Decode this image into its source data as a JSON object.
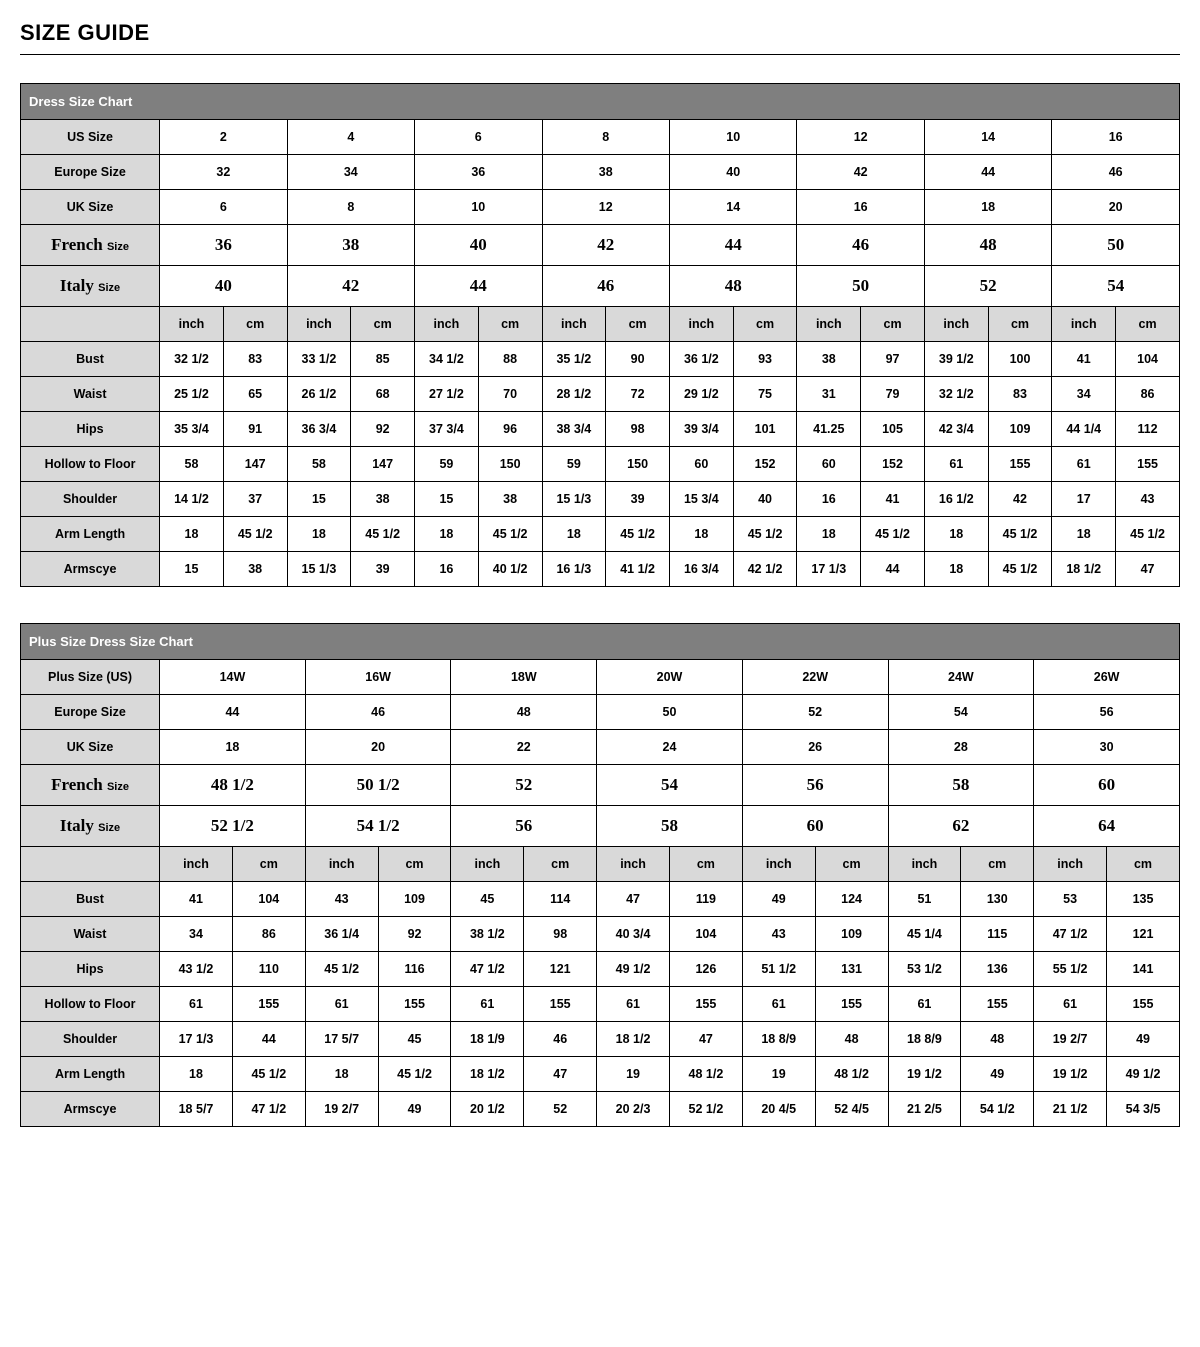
{
  "page_title": "SIZE GUIDE",
  "colors": {
    "header_bg": "#7f7f7f",
    "header_text": "#ffffff",
    "label_bg": "#d9d9d9",
    "border": "#000000",
    "background": "#ffffff"
  },
  "table1": {
    "title": "Dress Size Chart",
    "size_rows": [
      {
        "label": "US Size",
        "values": [
          "2",
          "4",
          "6",
          "8",
          "10",
          "12",
          "14",
          "16"
        ],
        "serif": false
      },
      {
        "label": "Europe Size",
        "values": [
          "32",
          "34",
          "36",
          "38",
          "40",
          "42",
          "44",
          "46"
        ],
        "serif": false
      },
      {
        "label": "UK Size",
        "values": [
          "6",
          "8",
          "10",
          "12",
          "14",
          "16",
          "18",
          "20"
        ],
        "serif": false
      },
      {
        "label_html": "French <span class='small'>Size</span>",
        "values": [
          "36",
          "38",
          "40",
          "42",
          "44",
          "46",
          "48",
          "50"
        ],
        "serif": true
      },
      {
        "label_html": "Italy <span class='small'>Size</span>",
        "values": [
          "40",
          "42",
          "44",
          "46",
          "48",
          "50",
          "52",
          "54"
        ],
        "serif": true
      }
    ],
    "unit_pair": [
      "inch",
      "cm"
    ],
    "measure_rows": [
      {
        "label": "Bust",
        "cells": [
          "32 1/2",
          "83",
          "33 1/2",
          "85",
          "34 1/2",
          "88",
          "35 1/2",
          "90",
          "36 1/2",
          "93",
          "38",
          "97",
          "39 1/2",
          "100",
          "41",
          "104"
        ]
      },
      {
        "label": "Waist",
        "cells": [
          "25 1/2",
          "65",
          "26 1/2",
          "68",
          "27 1/2",
          "70",
          "28 1/2",
          "72",
          "29 1/2",
          "75",
          "31",
          "79",
          "32 1/2",
          "83",
          "34",
          "86"
        ]
      },
      {
        "label": "Hips",
        "cells": [
          "35 3/4",
          "91",
          "36 3/4",
          "92",
          "37 3/4",
          "96",
          "38 3/4",
          "98",
          "39 3/4",
          "101",
          "41.25",
          "105",
          "42 3/4",
          "109",
          "44 1/4",
          "112"
        ]
      },
      {
        "label": "Hollow to Floor",
        "cells": [
          "58",
          "147",
          "58",
          "147",
          "59",
          "150",
          "59",
          "150",
          "60",
          "152",
          "60",
          "152",
          "61",
          "155",
          "61",
          "155"
        ]
      },
      {
        "label": "Shoulder",
        "cells": [
          "14 1/2",
          "37",
          "15",
          "38",
          "15",
          "38",
          "15 1/3",
          "39",
          "15 3/4",
          "40",
          "16",
          "41",
          "16 1/2",
          "42",
          "17",
          "43"
        ]
      },
      {
        "label": "Arm Length",
        "cells": [
          "18",
          "45 1/2",
          "18",
          "45 1/2",
          "18",
          "45 1/2",
          "18",
          "45 1/2",
          "18",
          "45 1/2",
          "18",
          "45 1/2",
          "18",
          "45 1/2",
          "18",
          "45 1/2"
        ]
      },
      {
        "label": "Armscye",
        "cells": [
          "15",
          "38",
          "15 1/3",
          "39",
          "16",
          "40 1/2",
          "16 1/3",
          "41 1/2",
          "16 3/4",
          "42 1/2",
          "17 1/3",
          "44",
          "18",
          "45 1/2",
          "18 1/2",
          "47"
        ]
      }
    ],
    "num_sizes": 8
  },
  "table2": {
    "title": "Plus Size Dress Size Chart",
    "size_rows": [
      {
        "label": "Plus Size (US)",
        "values": [
          "14W",
          "16W",
          "18W",
          "20W",
          "22W",
          "24W",
          "26W"
        ],
        "serif": false
      },
      {
        "label": "Europe Size",
        "values": [
          "44",
          "46",
          "48",
          "50",
          "52",
          "54",
          "56"
        ],
        "serif": false
      },
      {
        "label": "UK Size",
        "values": [
          "18",
          "20",
          "22",
          "24",
          "26",
          "28",
          "30"
        ],
        "serif": false
      },
      {
        "label_html": "French <span class='small'>Size</span>",
        "values": [
          "48 1/2",
          "50 1/2",
          "52",
          "54",
          "56",
          "58",
          "60"
        ],
        "serif": true
      },
      {
        "label_html": "Italy <span class='small'>Size</span>",
        "values": [
          "52 1/2",
          "54 1/2",
          "56",
          "58",
          "60",
          "62",
          "64"
        ],
        "serif": true
      }
    ],
    "unit_pair": [
      "inch",
      "cm"
    ],
    "measure_rows": [
      {
        "label": "Bust",
        "cells": [
          "41",
          "104",
          "43",
          "109",
          "45",
          "114",
          "47",
          "119",
          "49",
          "124",
          "51",
          "130",
          "53",
          "135"
        ]
      },
      {
        "label": "Waist",
        "cells": [
          "34",
          "86",
          "36 1/4",
          "92",
          "38 1/2",
          "98",
          "40 3/4",
          "104",
          "43",
          "109",
          "45 1/4",
          "115",
          "47 1/2",
          "121"
        ]
      },
      {
        "label": "Hips",
        "cells": [
          "43 1/2",
          "110",
          "45 1/2",
          "116",
          "47 1/2",
          "121",
          "49 1/2",
          "126",
          "51 1/2",
          "131",
          "53 1/2",
          "136",
          "55 1/2",
          "141"
        ]
      },
      {
        "label": "Hollow to Floor",
        "cells": [
          "61",
          "155",
          "61",
          "155",
          "61",
          "155",
          "61",
          "155",
          "61",
          "155",
          "61",
          "155",
          "61",
          "155"
        ]
      },
      {
        "label": "Shoulder",
        "cells": [
          "17 1/3",
          "44",
          "17 5/7",
          "45",
          "18 1/9",
          "46",
          "18 1/2",
          "47",
          "18 8/9",
          "48",
          "18 8/9",
          "48",
          "19 2/7",
          "49"
        ]
      },
      {
        "label": "Arm Length",
        "cells": [
          "18",
          "45 1/2",
          "18",
          "45 1/2",
          "18 1/2",
          "47",
          "19",
          "48 1/2",
          "19",
          "48 1/2",
          "19 1/2",
          "49",
          "19 1/2",
          "49 1/2"
        ]
      },
      {
        "label": "Armscye",
        "cells": [
          "18 5/7",
          "47 1/2",
          "19 2/7",
          "49",
          "20 1/2",
          "52",
          "20 2/3",
          "52 1/2",
          "20 4/5",
          "52 4/5",
          "21 2/5",
          "54 1/2",
          "21 1/2",
          "54 3/5"
        ]
      }
    ],
    "num_sizes": 7
  }
}
